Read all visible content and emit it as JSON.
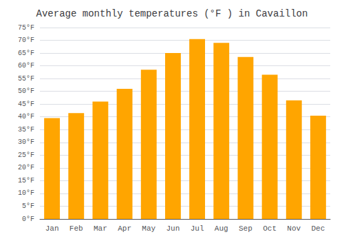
{
  "chart_data": {
    "type": "bar",
    "title": "Average monthly temperatures (°F ) in Cavaillon",
    "categories": [
      "Jan",
      "Feb",
      "Mar",
      "Apr",
      "May",
      "Jun",
      "Jul",
      "Aug",
      "Sep",
      "Oct",
      "Nov",
      "Dec"
    ],
    "values": [
      39.5,
      41.5,
      46.0,
      51.0,
      58.5,
      65.0,
      70.5,
      69.0,
      63.5,
      56.5,
      46.5,
      40.5
    ],
    "color": "#FFA500",
    "ylim": [
      0,
      75
    ],
    "yticks": [
      {
        "value": 0,
        "label": "0°F"
      },
      {
        "value": 5,
        "label": "5°F"
      },
      {
        "value": 10,
        "label": "10°F"
      },
      {
        "value": 15,
        "label": "15°F"
      },
      {
        "value": 20,
        "label": "20°F"
      },
      {
        "value": 25,
        "label": "25°F"
      },
      {
        "value": 30,
        "label": "30°F"
      },
      {
        "value": 35,
        "label": "35°F"
      },
      {
        "value": 40,
        "label": "40°F"
      },
      {
        "value": 45,
        "label": "45°F"
      },
      {
        "value": 50,
        "label": "50°F"
      },
      {
        "value": 55,
        "label": "55°F"
      },
      {
        "value": 60,
        "label": "60°F"
      },
      {
        "value": 65,
        "label": "65°F"
      },
      {
        "value": 70,
        "label": "70°F"
      },
      {
        "value": 75,
        "label": "75°F"
      }
    ],
    "grid": true
  }
}
